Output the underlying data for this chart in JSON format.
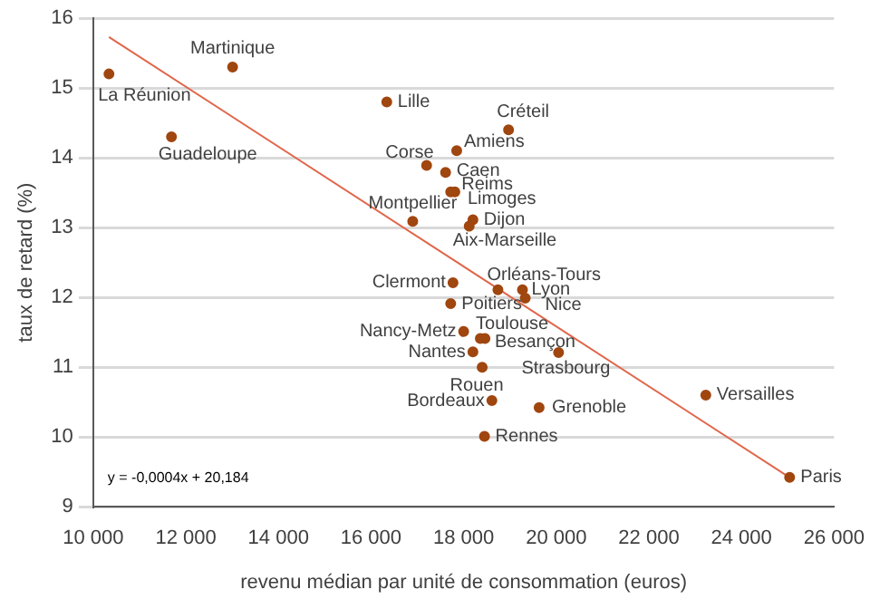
{
  "chart_data": {
    "type": "scatter",
    "xlabel": "revenu médian par unité de consommation (euros)",
    "ylabel": "taux de retard (%)",
    "xlim": [
      10000,
      26000
    ],
    "xticks": [
      {
        "value": 10000,
        "label": "10 000"
      },
      {
        "value": 12000,
        "label": "12 000"
      },
      {
        "value": 14000,
        "label": "14 000"
      },
      {
        "value": 16000,
        "label": "16 000"
      },
      {
        "value": 18000,
        "label": "18 000"
      },
      {
        "value": 20000,
        "label": "20 000"
      },
      {
        "value": 22000,
        "label": "22 000"
      },
      {
        "value": 24000,
        "label": "24 000"
      },
      {
        "value": 26000,
        "label": "26 000"
      }
    ],
    "ylim": [
      9,
      16
    ],
    "yticks": [
      9,
      10,
      11,
      12,
      13,
      14,
      15,
      16
    ],
    "grid": "y",
    "legend": false,
    "series": [
      {
        "type": "scatter",
        "marker": "circle",
        "color": "#a0460f",
        "x": [
          10340,
          13010,
          11690,
          16340,
          17200,
          16900,
          18970,
          17850,
          17610,
          17720,
          17810,
          18200,
          18120,
          17770,
          18740,
          19270,
          19330,
          17720,
          18000,
          18460,
          18360,
          18200,
          20050,
          18400,
          18610,
          19630,
          18450,
          23230,
          25040
        ],
        "values": [
          15.2,
          15.3,
          14.3,
          14.8,
          13.89,
          13.09,
          14.4,
          14.1,
          13.79,
          13.51,
          13.51,
          13.11,
          13.02,
          12.21,
          12.11,
          12.11,
          11.99,
          11.91,
          11.51,
          11.41,
          11.41,
          11.22,
          11.21,
          11.0,
          10.52,
          10.42,
          10.01,
          10.6,
          9.42
        ],
        "value_labels": [
          "La Réunion",
          "Martinique",
          "Guadeloupe",
          "Lille",
          "Corse",
          "Montpellier",
          "Créteil",
          "Amiens",
          "Caen",
          "Reims",
          "Limoges",
          "Dijon",
          "Aix-Marseille",
          "Clermont",
          "Orléans-Tours",
          "Lyon",
          "Nice",
          "Poitiers",
          "Nancy-Metz",
          "Toulouse",
          "Besançon",
          "Nantes",
          "Strasbourg",
          "Rouen",
          "Bordeaux",
          "Grenoble",
          "Rennes",
          "Versailles",
          "Paris"
        ]
      },
      {
        "type": "line",
        "color": "#e0664a",
        "x": [
          10340,
          25040
        ],
        "values": [
          15.73,
          9.42
        ]
      }
    ],
    "annotations": [
      "y = -0,0004x + 20,184"
    ]
  }
}
